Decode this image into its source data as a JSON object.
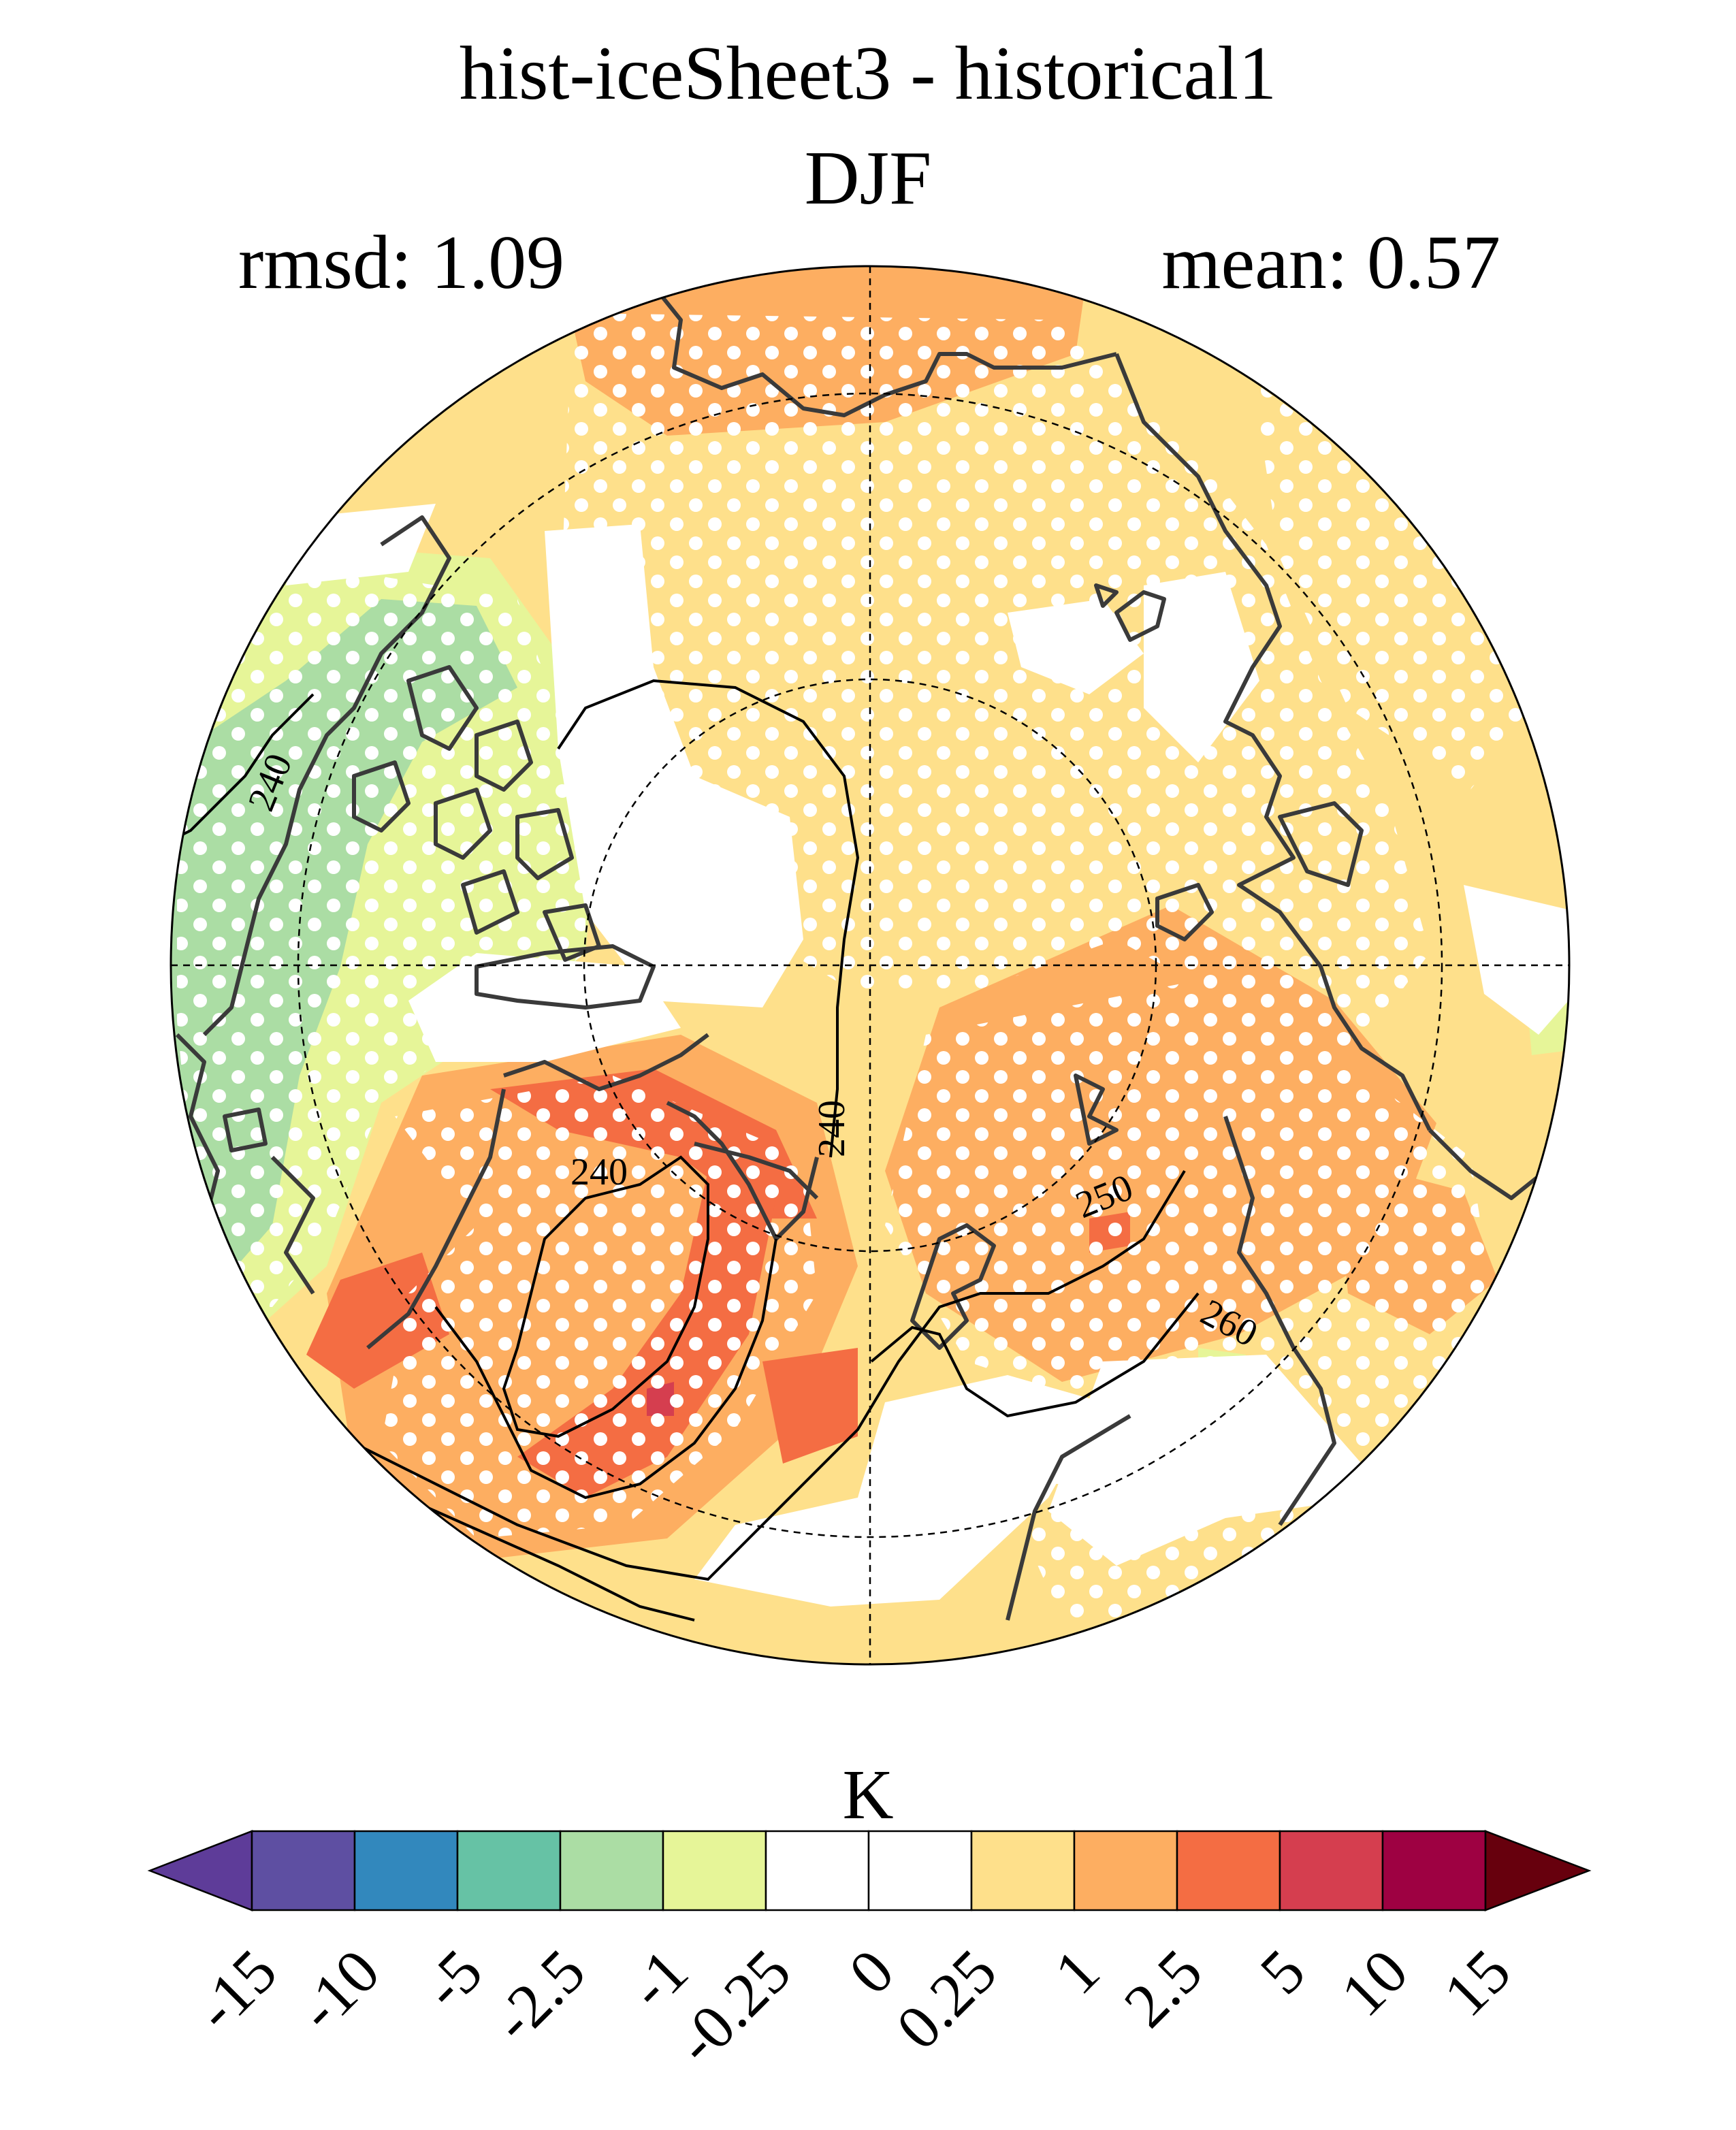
{
  "title": "hist-iceSheet3 - historical1",
  "season": "DJF",
  "rmsd_label": "rmsd: 1.09",
  "mean_label": "mean: 0.57",
  "colorbar": {
    "unit": "K",
    "ticks": [
      "-15",
      "-10",
      "-5",
      "-2.5",
      "-1",
      "-0.25",
      "0",
      "0.25",
      "1",
      "2.5",
      "5",
      "10",
      "15"
    ],
    "colors": [
      "#5e4fa2",
      "#3288bd",
      "#66c2a5",
      "#abdda4",
      "#e6f598",
      "#ffffff",
      "#ffffff",
      "#fee08b",
      "#fdae61",
      "#f46d43",
      "#d53e4f",
      "#9e0142"
    ],
    "under_color": "#5e3c99",
    "over_color": "#67000d"
  },
  "contour_labels": [
    "240",
    "240",
    "240",
    "240",
    "250",
    "260"
  ],
  "colors": {
    "land_outline": "#3a3a3a",
    "contour": "#000000",
    "stipple": "#ffffff"
  }
}
